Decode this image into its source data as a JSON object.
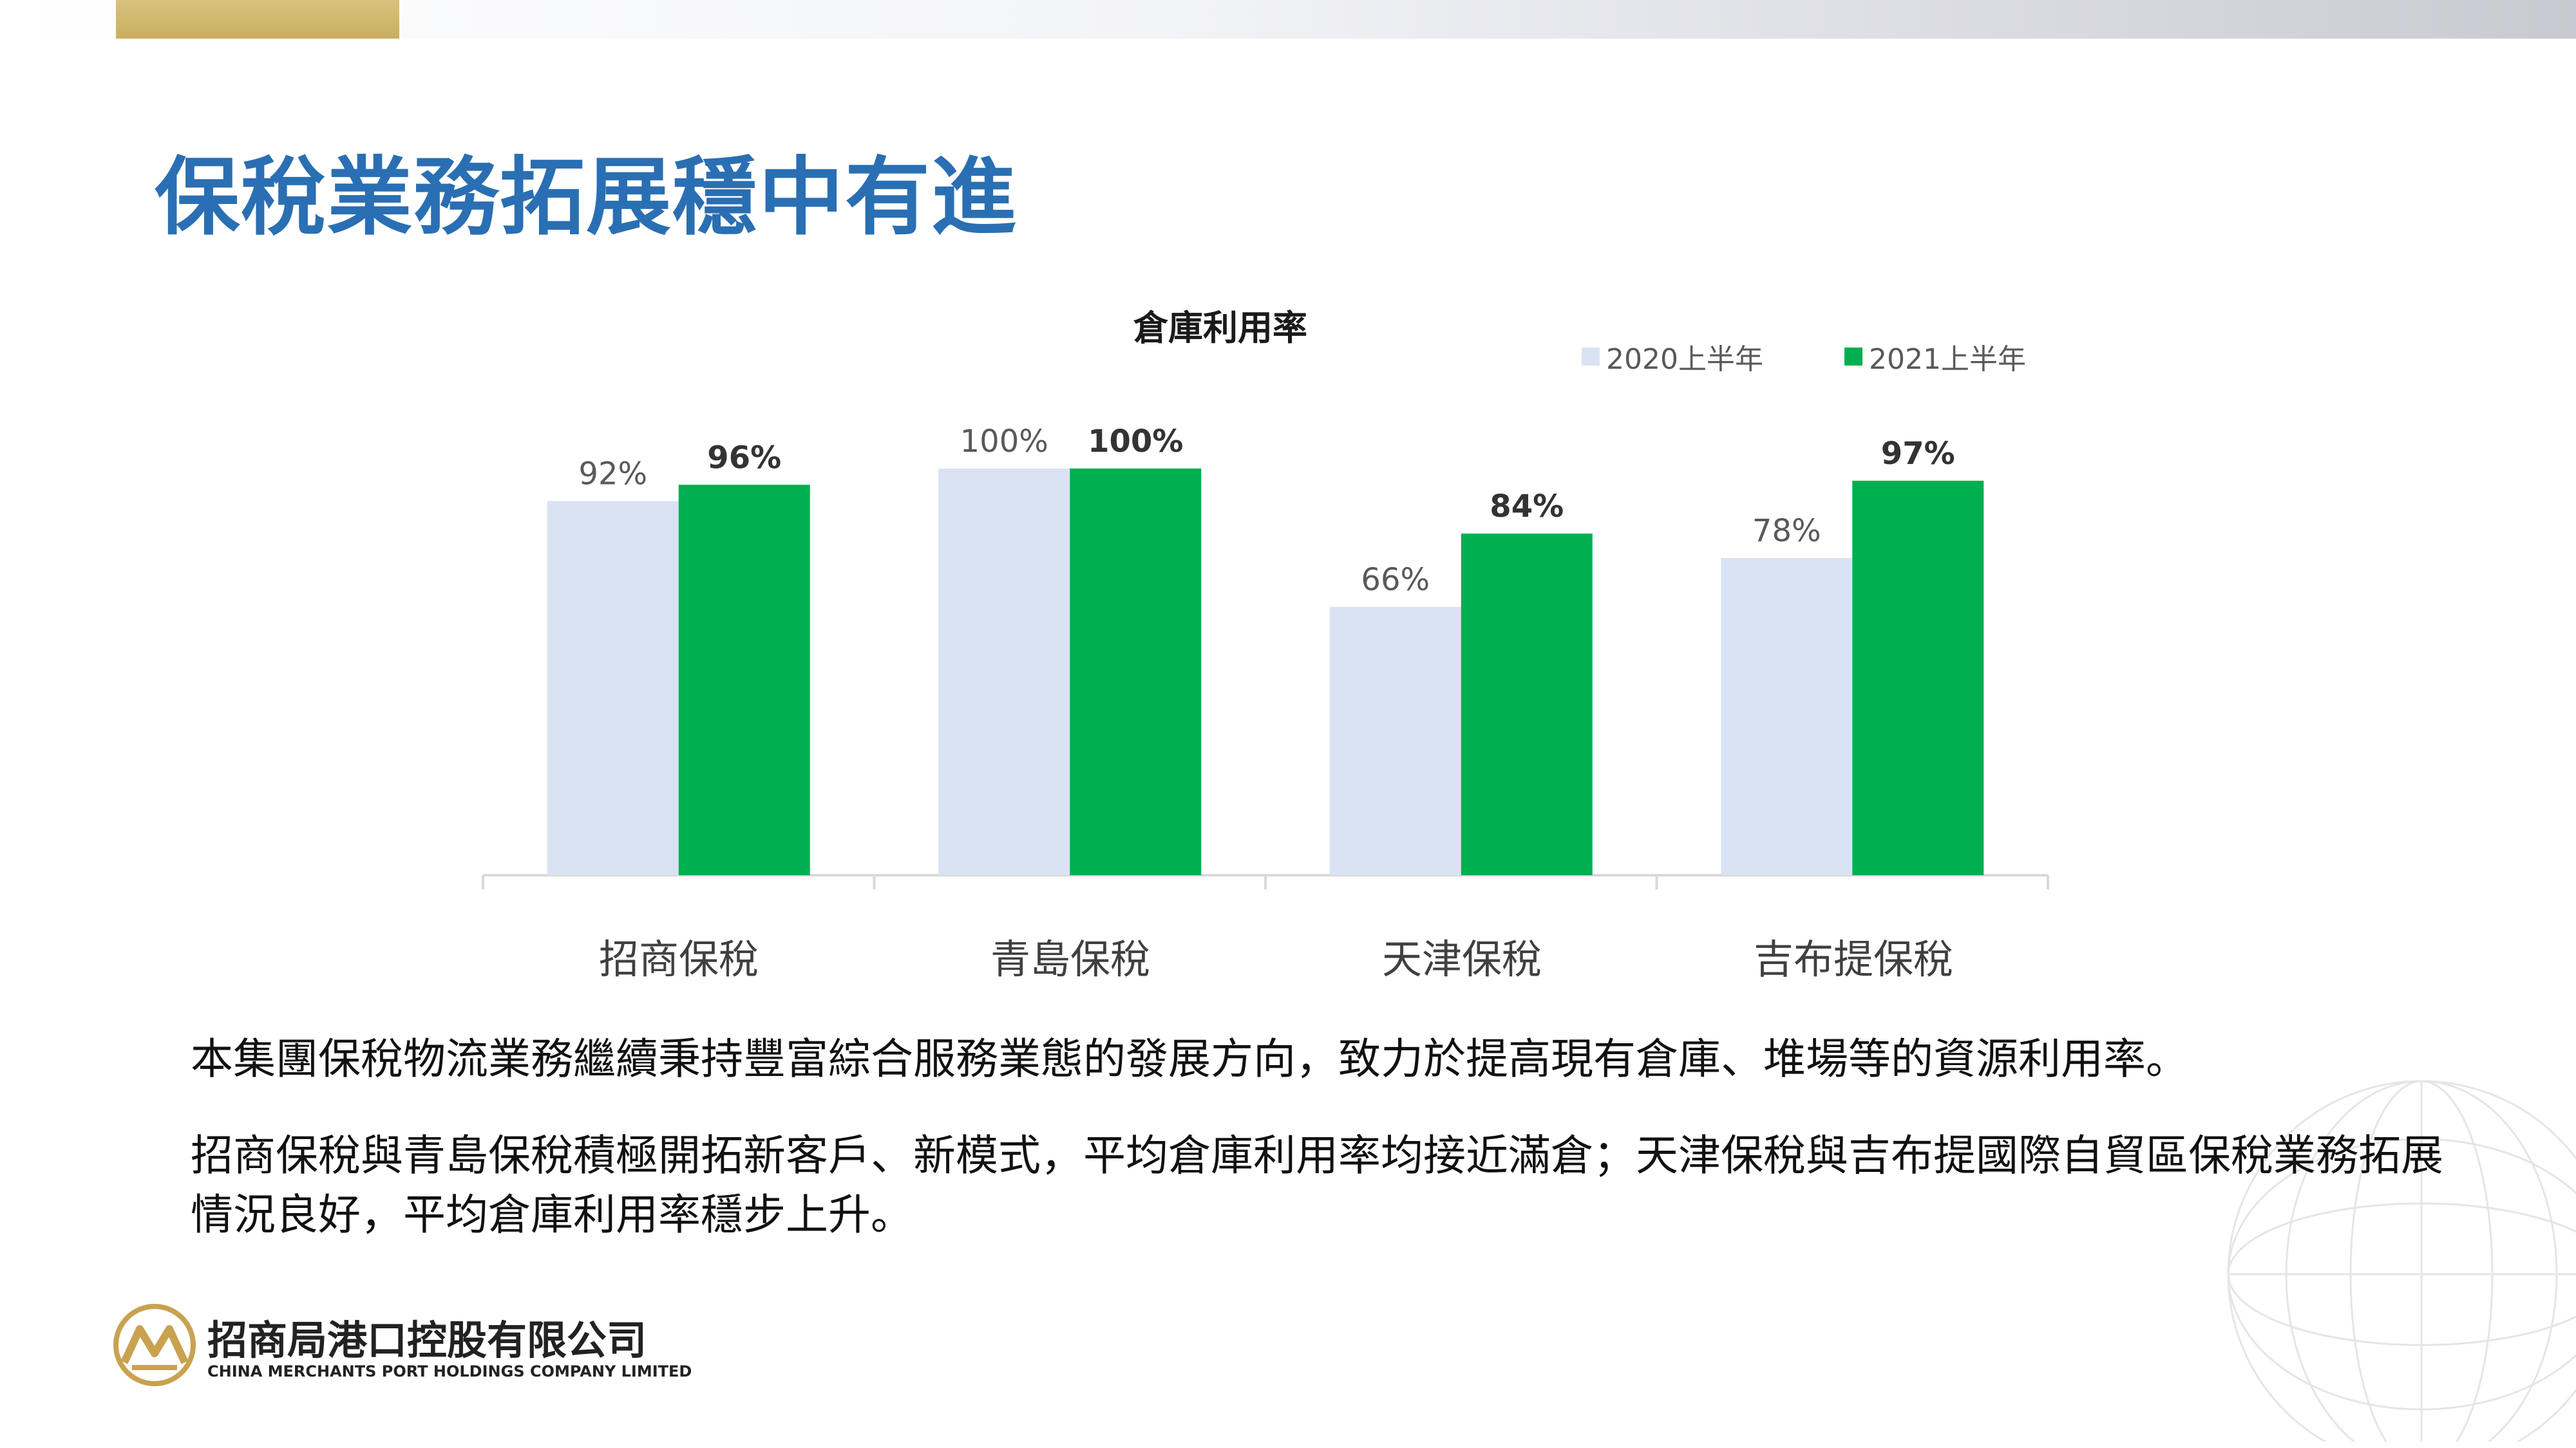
{
  "slide": {
    "title": "保稅業務拓展穩中有進"
  },
  "colors": {
    "title_blue": "#2a6fb3",
    "series_2020": "#dae3f3",
    "series_2021": "#00b050"
  },
  "chart_data": {
    "type": "bar",
    "title": "倉庫利用率",
    "categories": [
      "招商保稅",
      "青島保稅",
      "天津保稅",
      "吉布提保稅"
    ],
    "series": [
      {
        "name": "2020上半年",
        "values": [
          92,
          100,
          66,
          78
        ],
        "labels": [
          "92%",
          "100%",
          "66%",
          "78%"
        ],
        "color": "#dae3f3",
        "label_bold": false
      },
      {
        "name": "2021上半年",
        "values": [
          96,
          100,
          84,
          97
        ],
        "labels": [
          "96%",
          "100%",
          "84%",
          "97%"
        ],
        "color": "#00b050",
        "label_bold": true
      }
    ],
    "ylim": [
      0,
      100
    ],
    "unit": "%",
    "grid": false,
    "legend_position": "top-right"
  },
  "body": {
    "paragraph_1": "本集團保稅物流業務繼續秉持豐富綜合服務業態的發展方向，致力於提高現有倉庫、堆場等的資源利用率。",
    "paragraph_2": "招商保稅與青島保稅積極開拓新客戶、新模式，平均倉庫利用率均接近滿倉；天津保稅與吉布提國際自貿區保稅業務拓展情況良好，平均倉庫利用率穩步上升。"
  },
  "footer": {
    "company_name_cn": "招商局港口控股有限公司",
    "company_name_en": "CHINA MERCHANTS PORT HOLDINGS COMPANY LIMITED",
    "logo_icon": "cmport-logo-icon"
  }
}
